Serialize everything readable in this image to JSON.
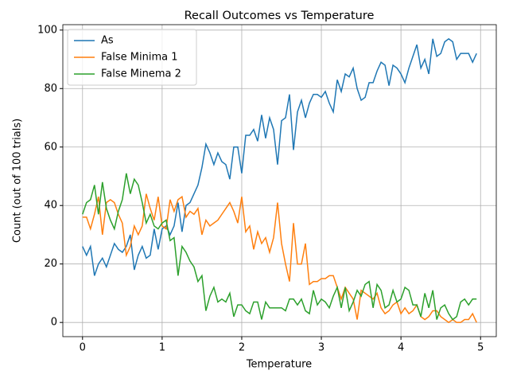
{
  "chart_data": {
    "type": "line",
    "title": "Recall Outcomes vs Temperature",
    "x_label": "Temperature",
    "y_label": "Count (out of 100 trials)",
    "x": [
      0,
      0.05,
      0.1,
      0.15,
      0.2,
      0.25,
      0.3,
      0.35,
      0.4,
      0.45,
      0.5,
      0.55,
      0.6,
      0.65,
      0.7,
      0.75,
      0.8,
      0.85,
      0.9,
      0.95,
      1,
      1.05,
      1.1,
      1.15,
      1.2,
      1.25,
      1.3,
      1.35,
      1.4,
      1.45,
      1.5,
      1.55,
      1.6,
      1.65,
      1.7,
      1.75,
      1.8,
      1.85,
      1.9,
      1.95,
      2,
      2.05,
      2.1,
      2.15,
      2.2,
      2.25,
      2.3,
      2.35,
      2.4,
      2.45,
      2.5,
      2.55,
      2.6,
      2.65,
      2.7,
      2.75,
      2.8,
      2.85,
      2.9,
      2.95,
      3,
      3.05,
      3.1,
      3.15,
      3.2,
      3.25,
      3.3,
      3.35,
      3.4,
      3.45,
      3.5,
      3.55,
      3.6,
      3.65,
      3.7,
      3.75,
      3.8,
      3.85,
      3.9,
      3.95,
      4,
      4.05,
      4.1,
      4.15,
      4.2,
      4.25,
      4.3,
      4.35,
      4.4,
      4.45,
      4.5,
      4.55,
      4.6,
      4.65,
      4.7,
      4.75,
      4.8,
      4.85,
      4.9,
      4.95
    ],
    "series": [
      {
        "name": "As",
        "color": "#1f77b4",
        "values": [
          26,
          23,
          26,
          16,
          20,
          22,
          19,
          23,
          27,
          25,
          24,
          26,
          30,
          18,
          23,
          26,
          22,
          23,
          32,
          25,
          32,
          33,
          30,
          33,
          41,
          31,
          40,
          41,
          44,
          47,
          53,
          61,
          58,
          54,
          58,
          55,
          54,
          49,
          60,
          60,
          51,
          64,
          64,
          66,
          62,
          71,
          63,
          70,
          66,
          54,
          69,
          70,
          78,
          59,
          72,
          76,
          70,
          75,
          78,
          78,
          77,
          79,
          75,
          72,
          83,
          79,
          85,
          84,
          87,
          80,
          76,
          77,
          82,
          82,
          86,
          89,
          88,
          81,
          88,
          87,
          85,
          82,
          87,
          91,
          95,
          87,
          90,
          85,
          97,
          91,
          92,
          96,
          97,
          96,
          90,
          92,
          92,
          92,
          89,
          92
        ]
      },
      {
        "name": "False Minima 1",
        "color": "#ff7f0e",
        "values": [
          36,
          36,
          32,
          37,
          43,
          30,
          41,
          42,
          41,
          37,
          34,
          23,
          26,
          33,
          30,
          33,
          44,
          39,
          35,
          43,
          33,
          32,
          42,
          38,
          42,
          43,
          36,
          38,
          37,
          39,
          30,
          35,
          33,
          34,
          35,
          37,
          39,
          41,
          38,
          34,
          43,
          31,
          33,
          25,
          31,
          27,
          29,
          24,
          29,
          41,
          27,
          20,
          14,
          34,
          20,
          20,
          27,
          13,
          14,
          14,
          15,
          15,
          16,
          16,
          12,
          8,
          12,
          10,
          8,
          1,
          11,
          10,
          9,
          8,
          10,
          5,
          3,
          4,
          6,
          7,
          3,
          5,
          3,
          4,
          6,
          2,
          1,
          2,
          4,
          4,
          2,
          1,
          0,
          1,
          0,
          0,
          1,
          1,
          3,
          0
        ]
      },
      {
        "name": "False Minema 2",
        "color": "#2ca02c",
        "values": [
          37,
          41,
          42,
          47,
          37,
          48,
          39,
          35,
          32,
          38,
          42,
          51,
          44,
          49,
          47,
          41,
          34,
          37,
          33,
          32,
          34,
          35,
          28,
          29,
          16,
          26,
          24,
          21,
          19,
          14,
          16,
          4,
          9,
          12,
          7,
          8,
          7,
          10,
          2,
          6,
          6,
          4,
          3,
          7,
          7,
          1,
          7,
          5,
          5,
          5,
          5,
          4,
          8,
          8,
          6,
          8,
          4,
          3,
          11,
          6,
          8,
          7,
          5,
          9,
          12,
          5,
          12,
          4,
          7,
          11,
          9,
          13,
          14,
          5,
          13,
          11,
          5,
          6,
          11,
          7,
          8,
          12,
          11,
          6,
          6,
          2,
          10,
          5,
          11,
          1,
          5,
          6,
          3,
          1,
          2,
          7,
          8,
          6,
          8,
          8
        ]
      }
    ],
    "xlim": [
      -0.2475,
      5.1975
    ],
    "ylim": [
      -4.85,
      101.85
    ],
    "xticks": [
      0,
      1,
      2,
      3,
      4,
      5
    ],
    "yticks": [
      0,
      20,
      40,
      60,
      80,
      100
    ],
    "grid": true,
    "legend": "upper left"
  }
}
